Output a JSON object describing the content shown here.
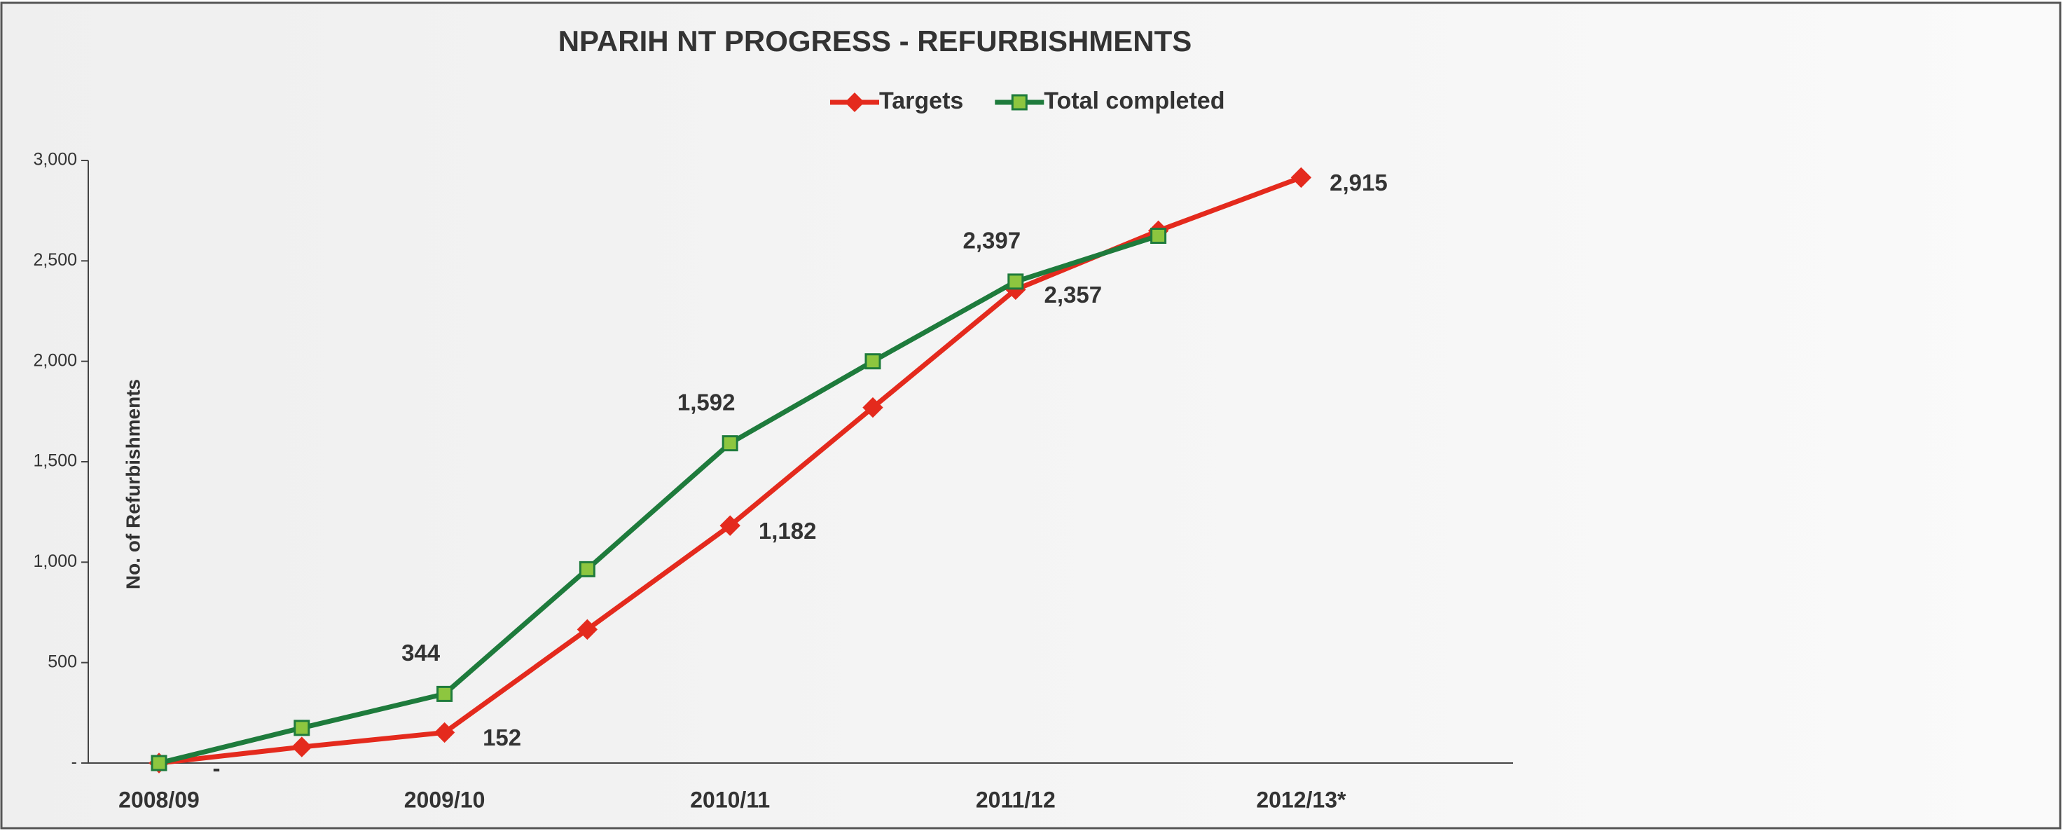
{
  "chart_data": {
    "type": "line",
    "title": "NPARIH NT PROGRESS - REFURBISHMENTS",
    "y_label": "No. of Refurbishments",
    "categories": [
      "2008/09",
      null,
      "2009/10",
      null,
      "2010/11",
      null,
      "2011/12",
      null,
      "2012/13*"
    ],
    "series": [
      {
        "name": "Targets",
        "color": "#e42a1d",
        "marker": "diamond",
        "values": [
          0,
          80,
          152,
          665,
          1182,
          1770,
          2357,
          2650,
          2915
        ],
        "value_labels": [
          "-",
          null,
          "152",
          null,
          "1,182",
          null,
          "2,357",
          null,
          "2,915"
        ]
      },
      {
        "name": "Total completed",
        "color": "#1e7b3c",
        "marker_color": "#8dc63f",
        "marker": "square",
        "values": [
          0,
          175,
          344,
          965,
          1592,
          2000,
          2397,
          2625,
          null
        ],
        "value_labels": [
          null,
          null,
          "344",
          null,
          "1,592",
          null,
          "2,397",
          null,
          null
        ]
      }
    ],
    "ylim": [
      0,
      3000
    ],
    "yticks": [
      {
        "value": 0,
        "label": "-"
      },
      500,
      {
        "value": 1000,
        "label": "1,000"
      },
      {
        "value": 1500,
        "label": "1,500"
      },
      {
        "value": 2000,
        "label": "2,000"
      },
      {
        "value": 2500,
        "label": "2,500"
      },
      {
        "value": 3000,
        "label": "3,000"
      }
    ],
    "legend": "top"
  }
}
